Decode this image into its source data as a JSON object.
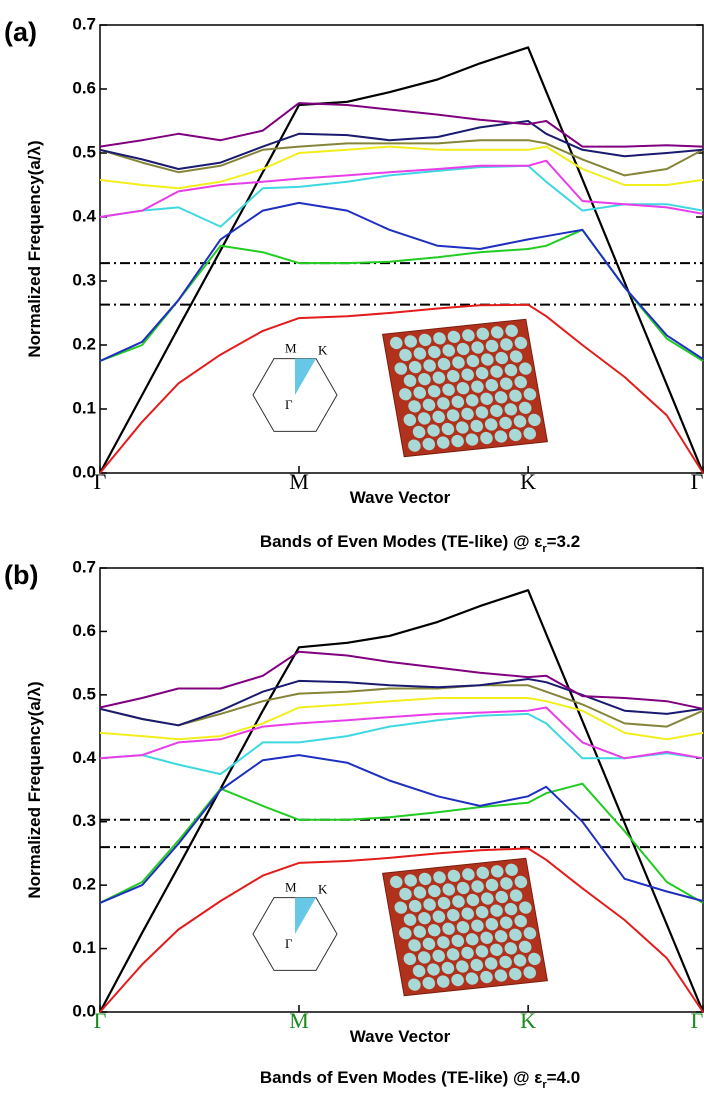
{
  "chart_data": [
    {
      "type": "line",
      "panel_label": "(a)",
      "ylabel": "Normalized Frequency(a/λ)",
      "xlabel": "Wave Vector",
      "caption": "Bands of Even Modes (TE-like) @ ε",
      "caption_sub": "r",
      "caption_end": "=3.2",
      "inset_labels": [
        "M",
        "K",
        "Γ"
      ],
      "xlim": [
        0,
        1
      ],
      "ylim": [
        0,
        0.7
      ],
      "xticks": [
        {
          "value": 0,
          "label": "Γ"
        },
        {
          "value": 0.33,
          "label": "M"
        },
        {
          "value": 0.71,
          "label": "K"
        },
        {
          "value": 1,
          "label": "Γ"
        }
      ],
      "xtick_color": "#000000",
      "yticks": [
        {
          "value": 0,
          "label": "0.0"
        },
        0.1,
        0.2,
        0.3,
        0.4,
        0.5,
        0.6,
        0.7
      ],
      "gap_lines": [
        0.328,
        0.263
      ],
      "x": [
        0,
        0.07,
        0.13,
        0.2,
        0.27,
        0.33,
        0.41,
        0.48,
        0.56,
        0.63,
        0.71,
        0.74,
        0.8,
        0.87,
        0.94,
        1.0
      ],
      "series": [
        {
          "color": "#000000",
          "values": [
            0,
            0.122,
            0.227,
            0.348,
            0.47,
            0.575,
            0.58,
            0.595,
            0.615,
            0.64,
            0.665,
            0.596,
            0.459,
            0.298,
            0.138,
            0
          ]
        },
        {
          "color": "#e31c1c",
          "values": [
            0,
            0.08,
            0.14,
            0.185,
            0.222,
            0.242,
            0.245,
            0.25,
            0.257,
            0.262,
            0.263,
            0.245,
            0.2,
            0.15,
            0.09,
            0
          ]
        },
        {
          "color": "#22cc22",
          "values": [
            0.175,
            0.2,
            0.27,
            0.355,
            0.345,
            0.328,
            0.328,
            0.33,
            0.337,
            0.345,
            0.35,
            0.355,
            0.38,
            0.29,
            0.21,
            0.175
          ]
        },
        {
          "color": "#1f2fbf",
          "values": [
            0.175,
            0.205,
            0.27,
            0.365,
            0.41,
            0.422,
            0.41,
            0.38,
            0.355,
            0.35,
            0.365,
            0.37,
            0.38,
            0.29,
            0.215,
            0.178
          ]
        },
        {
          "color": "#3ed8e0",
          "values": [
            0.4,
            0.41,
            0.415,
            0.385,
            0.445,
            0.447,
            0.455,
            0.465,
            0.472,
            0.478,
            0.48,
            0.455,
            0.41,
            0.42,
            0.42,
            0.41
          ]
        },
        {
          "color": "#e83ee8",
          "values": [
            0.4,
            0.41,
            0.44,
            0.45,
            0.455,
            0.46,
            0.465,
            0.47,
            0.475,
            0.48,
            0.48,
            0.488,
            0.425,
            0.42,
            0.415,
            0.405
          ]
        },
        {
          "color": "#f2ee1c",
          "values": [
            0.458,
            0.45,
            0.445,
            0.455,
            0.475,
            0.5,
            0.505,
            0.51,
            0.505,
            0.505,
            0.505,
            0.51,
            0.475,
            0.45,
            0.45,
            0.458
          ]
        },
        {
          "color": "#85853a",
          "values": [
            0.505,
            0.485,
            0.47,
            0.48,
            0.505,
            0.51,
            0.515,
            0.515,
            0.515,
            0.52,
            0.52,
            0.515,
            0.49,
            0.465,
            0.475,
            0.505
          ]
        },
        {
          "color": "#1a1a70",
          "values": [
            0.505,
            0.49,
            0.475,
            0.485,
            0.51,
            0.53,
            0.528,
            0.52,
            0.525,
            0.54,
            0.55,
            0.53,
            0.505,
            0.495,
            0.5,
            0.505
          ]
        },
        {
          "color": "#800080",
          "values": [
            0.51,
            0.52,
            0.53,
            0.52,
            0.535,
            0.578,
            0.575,
            0.568,
            0.56,
            0.552,
            0.545,
            0.55,
            0.51,
            0.51,
            0.512,
            0.51
          ]
        }
      ]
    },
    {
      "type": "line",
      "panel_label": "(b)",
      "ylabel": "Normalized Frequency(a/λ)",
      "xlabel": "Wave Vector",
      "caption": "Bands of Even Modes (TE-like) @ ε",
      "caption_sub": "r",
      "caption_end": "=4.0",
      "inset_labels": [
        "M",
        "K",
        "Γ"
      ],
      "xlim": [
        0,
        1
      ],
      "ylim": [
        0,
        0.7
      ],
      "xticks": [
        {
          "value": 0,
          "label": "Γ"
        },
        {
          "value": 0.33,
          "label": "M"
        },
        {
          "value": 0.71,
          "label": "K"
        },
        {
          "value": 1,
          "label": "Γ"
        }
      ],
      "xtick_color": "#1a8a1a",
      "yticks": [
        {
          "value": 0,
          "label": "0.0"
        },
        0.1,
        0.2,
        0.3,
        0.4,
        0.5,
        0.6,
        0.7
      ],
      "gap_lines": [
        0.303,
        0.26
      ],
      "x": [
        0,
        0.07,
        0.13,
        0.2,
        0.27,
        0.33,
        0.41,
        0.48,
        0.56,
        0.63,
        0.71,
        0.74,
        0.8,
        0.87,
        0.94,
        1.0
      ],
      "series": [
        {
          "color": "#000000",
          "values": [
            0,
            0.125,
            0.229,
            0.352,
            0.475,
            0.575,
            0.582,
            0.593,
            0.615,
            0.64,
            0.665,
            0.596,
            0.459,
            0.298,
            0.138,
            0
          ]
        },
        {
          "color": "#e31c1c",
          "values": [
            0,
            0.075,
            0.13,
            0.175,
            0.215,
            0.235,
            0.238,
            0.243,
            0.25,
            0.255,
            0.258,
            0.24,
            0.195,
            0.145,
            0.085,
            0
          ]
        },
        {
          "color": "#22cc22",
          "values": [
            0.172,
            0.205,
            0.27,
            0.352,
            0.325,
            0.303,
            0.303,
            0.307,
            0.315,
            0.323,
            0.33,
            0.345,
            0.36,
            0.285,
            0.205,
            0.172
          ]
        },
        {
          "color": "#1f2fbf",
          "values": [
            0.172,
            0.2,
            0.265,
            0.35,
            0.397,
            0.405,
            0.393,
            0.365,
            0.34,
            0.325,
            0.34,
            0.355,
            0.3,
            0.21,
            0.19,
            0.175
          ]
        },
        {
          "color": "#3ed8e0",
          "values": [
            0.4,
            0.405,
            0.39,
            0.375,
            0.425,
            0.425,
            0.435,
            0.45,
            0.46,
            0.467,
            0.47,
            0.455,
            0.4,
            0.4,
            0.408,
            0.4
          ]
        },
        {
          "color": "#e83ee8",
          "values": [
            0.4,
            0.405,
            0.425,
            0.43,
            0.45,
            0.455,
            0.46,
            0.465,
            0.47,
            0.472,
            0.475,
            0.48,
            0.425,
            0.4,
            0.41,
            0.4
          ]
        },
        {
          "color": "#f2ee1c",
          "values": [
            0.44,
            0.435,
            0.43,
            0.435,
            0.455,
            0.48,
            0.485,
            0.49,
            0.495,
            0.495,
            0.495,
            0.49,
            0.475,
            0.44,
            0.43,
            0.44
          ]
        },
        {
          "color": "#85853a",
          "values": [
            0.478,
            0.462,
            0.452,
            0.47,
            0.49,
            0.502,
            0.505,
            0.51,
            0.51,
            0.515,
            0.515,
            0.505,
            0.485,
            0.455,
            0.45,
            0.475
          ]
        },
        {
          "color": "#1a1a70",
          "values": [
            0.478,
            0.462,
            0.452,
            0.475,
            0.505,
            0.522,
            0.52,
            0.515,
            0.512,
            0.515,
            0.525,
            0.52,
            0.5,
            0.475,
            0.47,
            0.478
          ]
        },
        {
          "color": "#800080",
          "values": [
            0.48,
            0.495,
            0.51,
            0.51,
            0.53,
            0.568,
            0.562,
            0.552,
            0.543,
            0.535,
            0.528,
            0.53,
            0.498,
            0.495,
            0.49,
            0.478
          ]
        }
      ]
    }
  ]
}
